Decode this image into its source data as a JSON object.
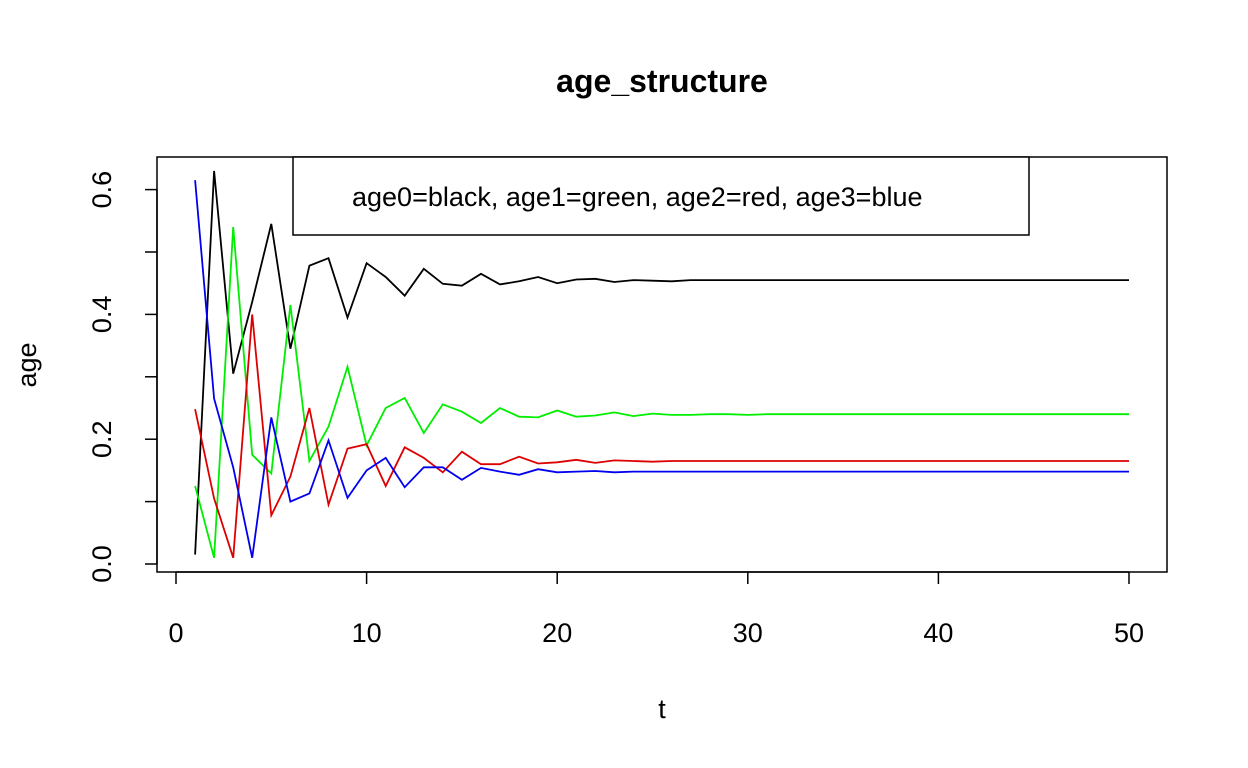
{
  "chart_data": {
    "type": "line",
    "title": "age_structure",
    "xlabel": "t",
    "ylabel": "age",
    "xlim": [
      1,
      50
    ],
    "ylim": [
      0.0,
      0.62
    ],
    "x_ticks": [
      0,
      10,
      20,
      30,
      40,
      50
    ],
    "x_tick_labels": [
      "0",
      "10",
      "20",
      "30",
      "40",
      "50"
    ],
    "y_ticks": [
      0.0,
      0.1,
      0.2,
      0.3,
      0.4,
      0.5,
      0.6
    ],
    "y_tick_labels": [
      "0.0",
      "",
      "0.2",
      "",
      "0.4",
      "",
      "0.6"
    ],
    "grid": false,
    "legend": {
      "text": "age0=black, age1=green, age2=red, age3=blue",
      "position": "top-right"
    },
    "x": [
      1,
      2,
      3,
      4,
      5,
      6,
      7,
      8,
      9,
      10,
      11,
      12,
      13,
      14,
      15,
      16,
      17,
      18,
      19,
      20,
      21,
      22,
      23,
      24,
      25,
      26,
      27,
      28,
      29,
      30,
      31,
      32,
      33,
      34,
      35,
      36,
      37,
      38,
      39,
      40,
      41,
      42,
      43,
      44,
      45,
      46,
      47,
      48,
      49,
      50
    ],
    "series": [
      {
        "color": "#000000",
        "values": [
          0.015,
          0.63,
          0.305,
          0.42,
          0.545,
          0.345,
          0.478,
          0.49,
          0.395,
          0.482,
          0.46,
          0.43,
          0.473,
          0.449,
          0.446,
          0.465,
          0.448,
          0.453,
          0.46,
          0.45,
          0.456,
          0.457,
          0.452,
          0.455,
          0.454,
          0.453,
          0.455,
          0.455,
          0.455,
          0.455,
          0.455,
          0.455,
          0.455,
          0.455,
          0.455,
          0.455,
          0.455,
          0.455,
          0.455,
          0.455,
          0.455,
          0.455,
          0.455,
          0.455,
          0.455,
          0.455,
          0.455,
          0.455,
          0.455,
          0.455
        ]
      },
      {
        "color": "#00ee00",
        "values": [
          0.125,
          0.01,
          0.54,
          0.175,
          0.145,
          0.415,
          0.165,
          0.22,
          0.316,
          0.19,
          0.25,
          0.266,
          0.21,
          0.256,
          0.244,
          0.226,
          0.25,
          0.236,
          0.235,
          0.246,
          0.236,
          0.238,
          0.243,
          0.237,
          0.241,
          0.239,
          0.239,
          0.24,
          0.24,
          0.239,
          0.24,
          0.24,
          0.24,
          0.24,
          0.24,
          0.24,
          0.24,
          0.24,
          0.24,
          0.24,
          0.24,
          0.24,
          0.24,
          0.24,
          0.24,
          0.24,
          0.24,
          0.24,
          0.24,
          0.24
        ]
      },
      {
        "color": "#dd0000",
        "values": [
          0.248,
          0.105,
          0.01,
          0.4,
          0.078,
          0.14,
          0.25,
          0.095,
          0.185,
          0.192,
          0.125,
          0.187,
          0.17,
          0.147,
          0.18,
          0.16,
          0.16,
          0.172,
          0.161,
          0.163,
          0.167,
          0.162,
          0.166,
          0.165,
          0.164,
          0.165,
          0.165,
          0.165,
          0.165,
          0.165,
          0.165,
          0.165,
          0.165,
          0.165,
          0.165,
          0.165,
          0.165,
          0.165,
          0.165,
          0.165,
          0.165,
          0.165,
          0.165,
          0.165,
          0.165,
          0.165,
          0.165,
          0.165,
          0.165,
          0.165
        ]
      },
      {
        "color": "#0000ee",
        "values": [
          0.615,
          0.265,
          0.155,
          0.01,
          0.235,
          0.1,
          0.113,
          0.198,
          0.106,
          0.15,
          0.17,
          0.123,
          0.155,
          0.155,
          0.135,
          0.154,
          0.148,
          0.143,
          0.152,
          0.147,
          0.148,
          0.149,
          0.147,
          0.148,
          0.148,
          0.148,
          0.148,
          0.148,
          0.148,
          0.148,
          0.148,
          0.148,
          0.148,
          0.148,
          0.148,
          0.148,
          0.148,
          0.148,
          0.148,
          0.148,
          0.148,
          0.148,
          0.148,
          0.148,
          0.148,
          0.148,
          0.148,
          0.148,
          0.148,
          0.148
        ]
      }
    ]
  }
}
